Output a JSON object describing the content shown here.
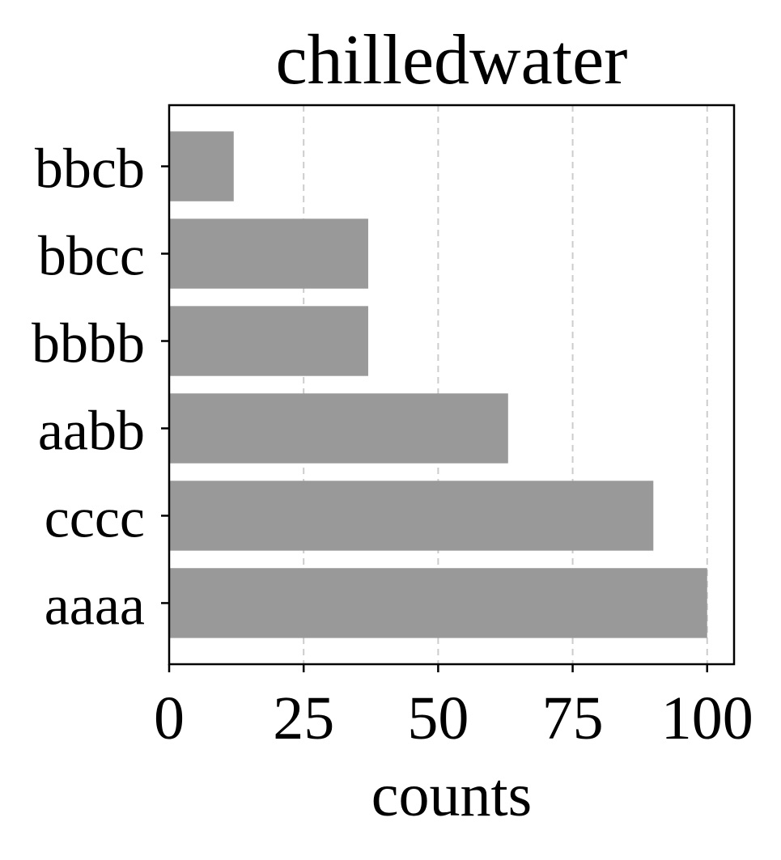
{
  "chart_data": {
    "type": "bar",
    "orientation": "horizontal",
    "title": "chilledwater",
    "xlabel": "counts",
    "ylabel": "",
    "categories": [
      "aaaa",
      "cccc",
      "aabb",
      "bbbb",
      "bbcc",
      "bbcb"
    ],
    "values": [
      100,
      90,
      63,
      37,
      37,
      12
    ],
    "xlim": [
      0,
      105
    ],
    "xticks": [
      0,
      25,
      50,
      75,
      100
    ],
    "xtick_labels": [
      "0",
      "25",
      "50",
      "75",
      "100"
    ],
    "grid": "x-dashed",
    "legend": "none",
    "colors": {
      "bar": "#999999",
      "grid": "#cccccc",
      "axis": "#000000"
    }
  }
}
